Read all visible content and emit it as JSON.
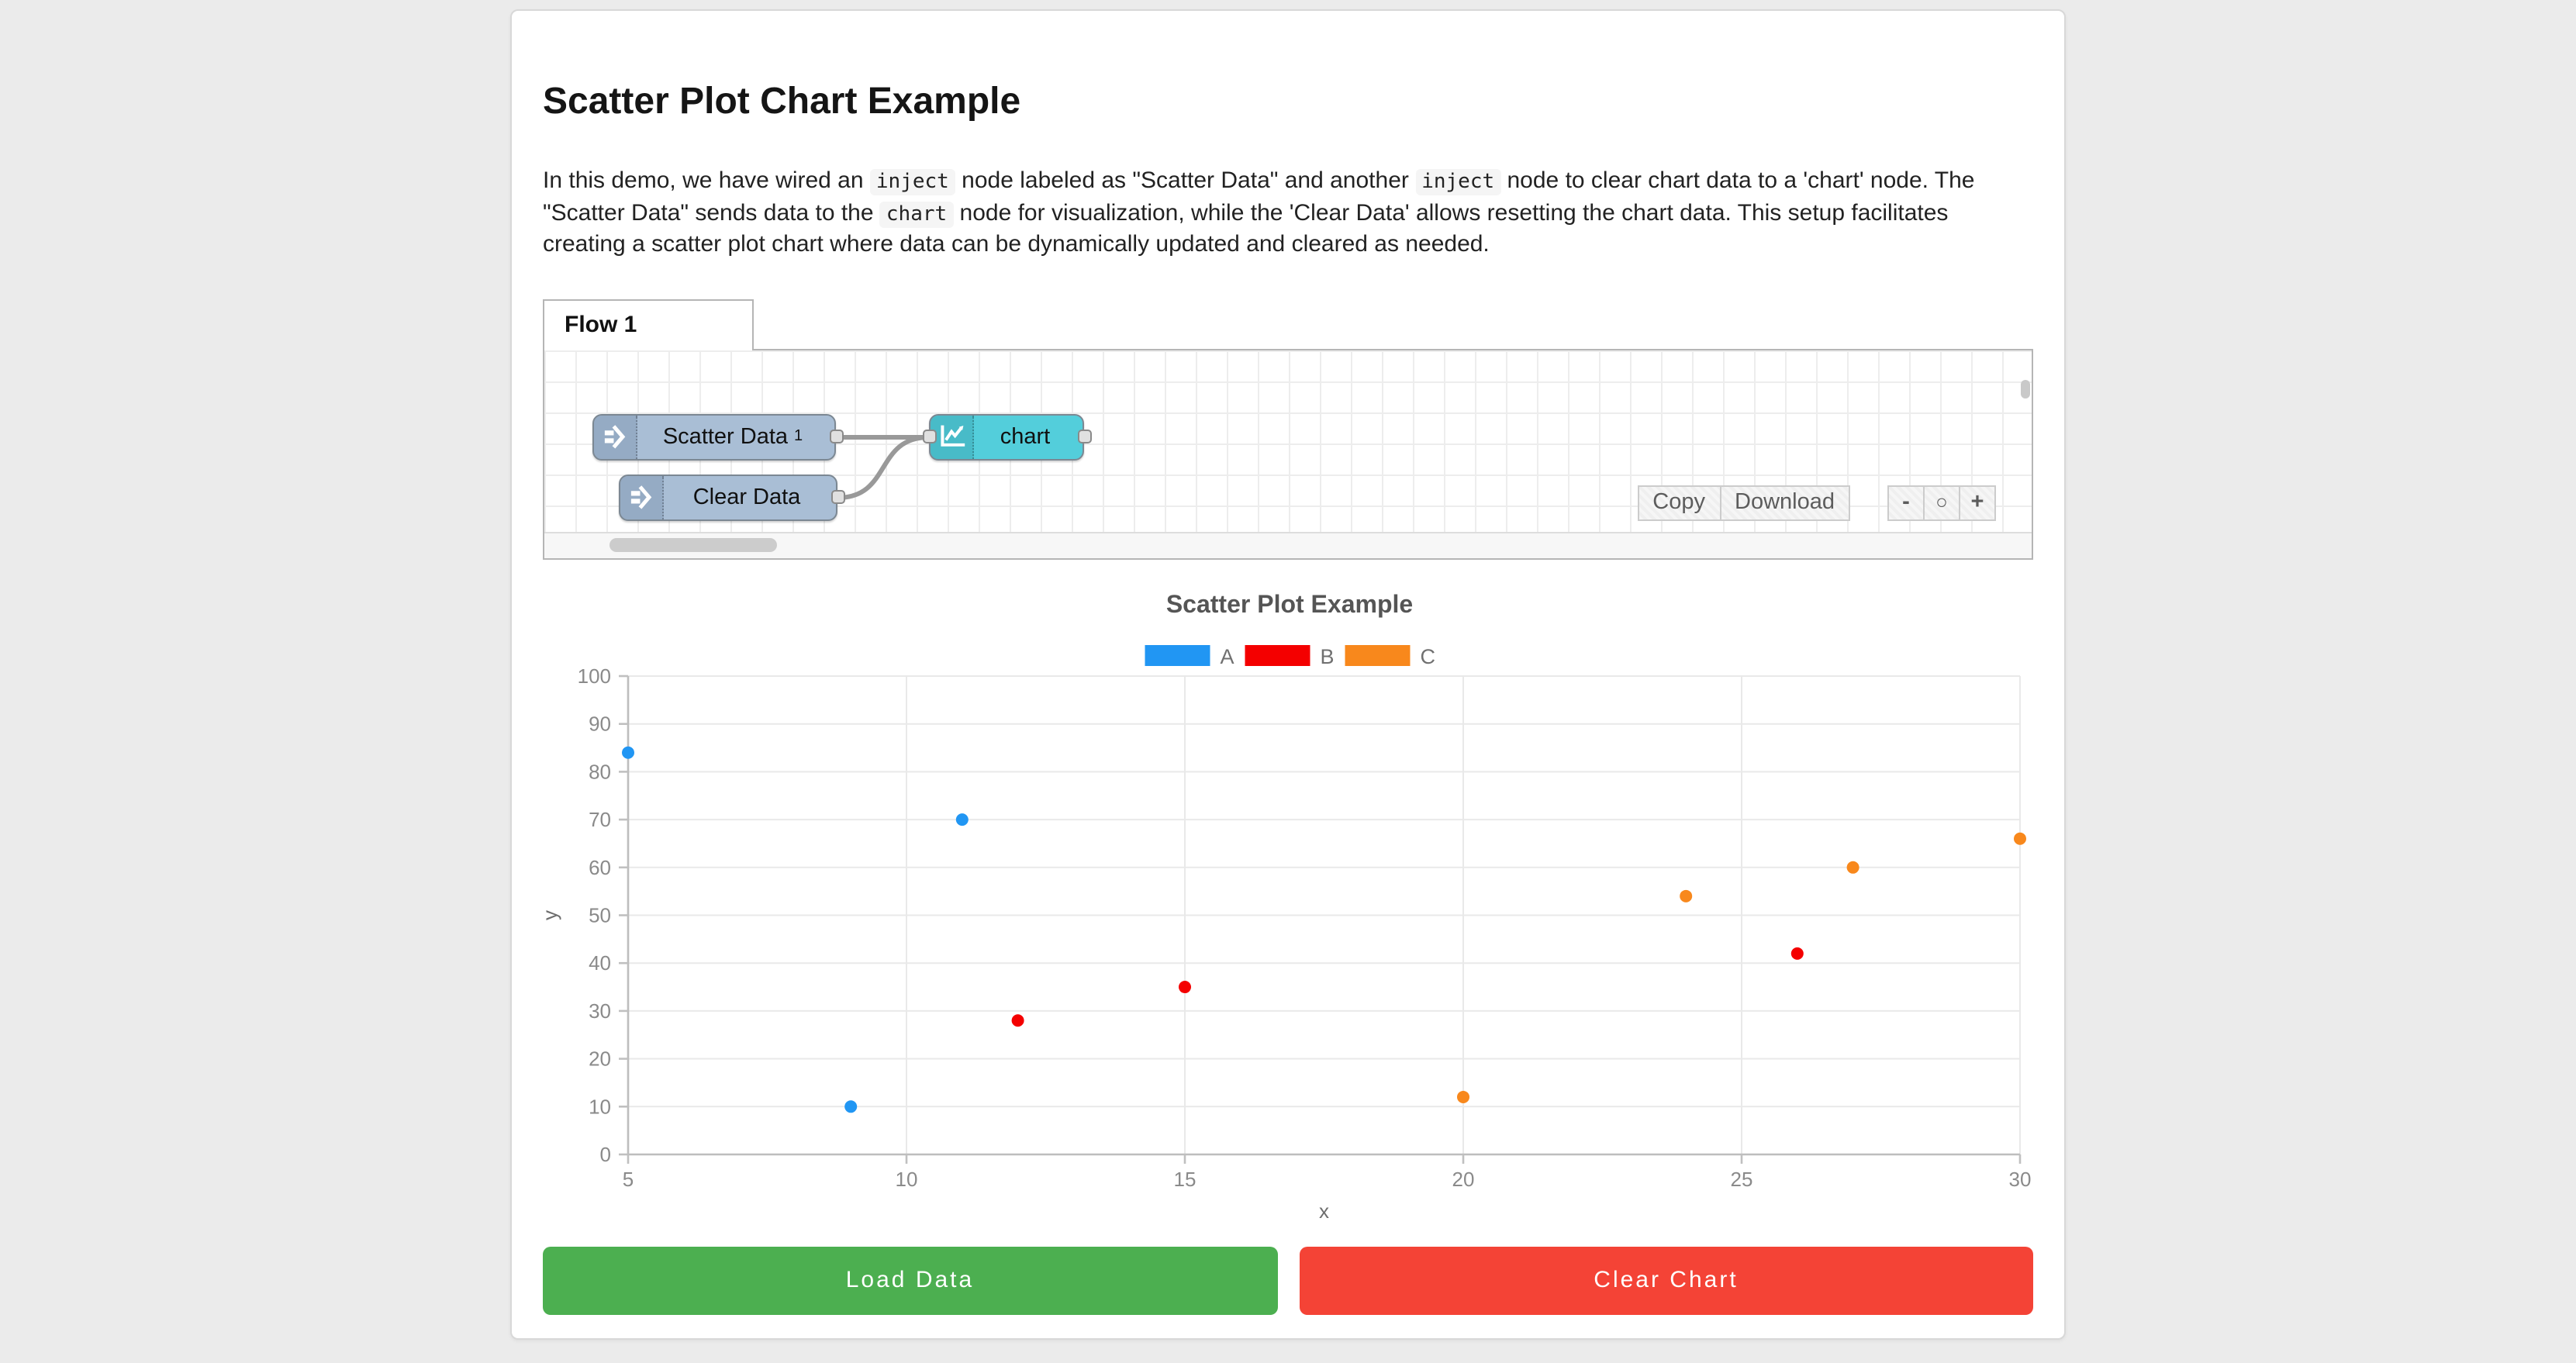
{
  "colors": {
    "page_bg": "#ebebeb",
    "card_bg": "#ffffff"
  },
  "header": {
    "title": "Scatter Plot Chart Example"
  },
  "description": {
    "segments": [
      {
        "type": "text",
        "text": "In this demo, we have wired an "
      },
      {
        "type": "code",
        "text": "inject"
      },
      {
        "type": "text",
        "text": " node labeled as \"Scatter Data\" and another "
      },
      {
        "type": "code",
        "text": "inject"
      },
      {
        "type": "text",
        "text": " node to clear chart data to a 'chart' node. The \"Scatter Data\" sends data to the "
      },
      {
        "type": "code",
        "text": "chart"
      },
      {
        "type": "text",
        "text": " node for visualization, while the 'Clear Data' allows resetting the chart data. This setup facilitates creating a scatter plot chart where data can be dynamically updated and cleared as needed."
      }
    ]
  },
  "flow": {
    "tab_label": "Flow 1",
    "nodes": [
      {
        "label": "Scatter Data",
        "sup": "1",
        "type": "inject",
        "color": "#a9bed5"
      },
      {
        "label": "Clear Data",
        "type": "inject",
        "color": "#a9bed5"
      },
      {
        "label": "chart",
        "type": "chart",
        "color": "#53cedb"
      }
    ],
    "toolbar": {
      "copy": "Copy",
      "download": "Download",
      "zoom_out": "-",
      "zoom_reset": "○",
      "zoom_in": "+"
    }
  },
  "chart_data": {
    "type": "scatter",
    "title": "Scatter Plot Example",
    "xlabel": "x",
    "ylabel": "y",
    "xlim": [
      5,
      30
    ],
    "ylim": [
      0,
      100
    ],
    "xticks": [
      5,
      10,
      15,
      20,
      25,
      30
    ],
    "yticks": [
      0,
      10,
      20,
      30,
      40,
      50,
      60,
      70,
      80,
      90,
      100
    ],
    "grid": true,
    "legend_position": "top-center",
    "series": [
      {
        "name": "A",
        "color": "#2196F3",
        "points": [
          [
            5,
            84
          ],
          [
            9,
            10
          ],
          [
            11,
            70
          ]
        ]
      },
      {
        "name": "B",
        "color": "#F40000",
        "points": [
          [
            12,
            28
          ],
          [
            15,
            35
          ],
          [
            26,
            42
          ]
        ]
      },
      {
        "name": "C",
        "color": "#F8881C",
        "points": [
          [
            20,
            12
          ],
          [
            24,
            54
          ],
          [
            27,
            60
          ],
          [
            30,
            66
          ]
        ]
      }
    ]
  },
  "actions": {
    "load": {
      "label": "Load Data",
      "color": "#4CAF50"
    },
    "clear": {
      "label": "Clear Chart",
      "color": "#F44336"
    }
  }
}
